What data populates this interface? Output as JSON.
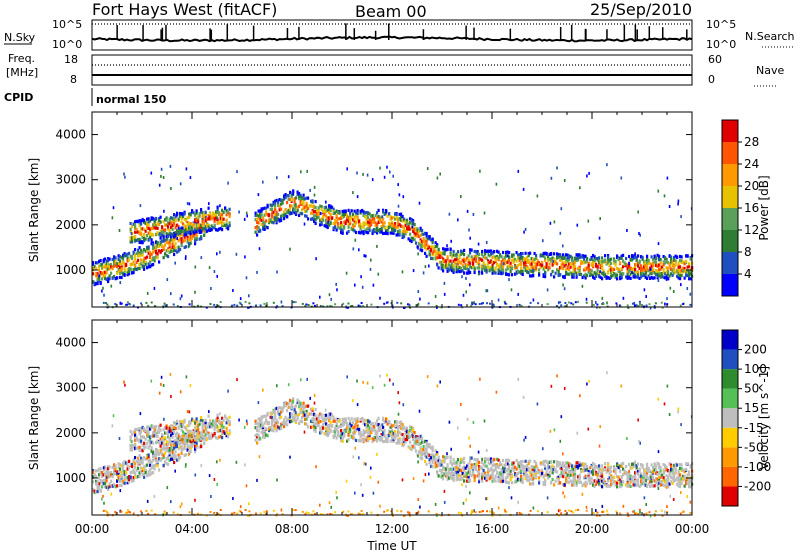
{
  "header": {
    "station": "Fort Hays West (fitACF)",
    "beam": "Beam 00",
    "date": "25/Sep/2010"
  },
  "left_labels": {
    "nsky": "N.Sky",
    "freq_line1": "Freq.",
    "freq_line2": "[MHz]",
    "cpid": "CPID"
  },
  "right_labels": {
    "nsearch": "N.Search",
    "nave": "Nave"
  },
  "noise_ticks": {
    "top": "10^5",
    "bottom": "10^0"
  },
  "freq_ticks": {
    "left_top": "18",
    "left_bottom": "8",
    "right_top": "60",
    "right_bottom": "0"
  },
  "cpid_text": "normal 150",
  "colors": {
    "power": [
      "#0000ff",
      "#2050c0",
      "#2e7d32",
      "#5aa05a",
      "#e6c200",
      "#ff9900",
      "#ff5500",
      "#e00000"
    ],
    "velocity": [
      "#e00000",
      "#ff6600",
      "#ff9900",
      "#ffcc00",
      "#bebebe",
      "#55c055",
      "#2e8b2e",
      "#2050c0",
      "#0000c8"
    ]
  },
  "chart_data": [
    {
      "type": "heatmap",
      "panel": "power",
      "ylabel": "Slant Range [km]",
      "ylim": [
        180,
        4500
      ],
      "yticks": [
        "1000",
        "2000",
        "3000",
        "4000"
      ],
      "xlim_hours": [
        0,
        24
      ],
      "colorbar_label": "Power [dB]",
      "colorbar_range": [
        0,
        30
      ],
      "colorbar_ticks": [
        "4",
        "8",
        "12",
        "16",
        "20",
        "24",
        "28"
      ],
      "features": [
        {
          "name": "range-band",
          "t_hours": [
            0.0,
            1.0,
            2.0,
            3.0,
            4.0,
            4.5
          ],
          "range_km": [
            950,
            1100,
            1300,
            1550,
            1850,
            2000
          ]
        },
        {
          "name": "range-band",
          "t_hours": [
            1.5,
            3.0,
            4.5,
            5.5
          ],
          "range_km": [
            1850,
            2000,
            2150,
            2200
          ]
        },
        {
          "name": "range-band",
          "t_hours": [
            6.5,
            8.0,
            9.0,
            10.0,
            12.0,
            12.8
          ],
          "range_km": [
            2050,
            2550,
            2300,
            2100,
            2100,
            1900
          ]
        },
        {
          "name": "range-band",
          "t_hours": [
            12.8,
            13.5,
            14.0,
            16.0,
            20.0,
            24.0
          ],
          "range_km": [
            1900,
            1500,
            1250,
            1200,
            1100,
            1100
          ]
        }
      ]
    },
    {
      "type": "heatmap",
      "panel": "velocity",
      "ylabel": "Slant Range [km]",
      "ylim": [
        180,
        4500
      ],
      "yticks": [
        "1000",
        "2000",
        "3000",
        "4000"
      ],
      "xlabel": "Time UT",
      "xticks": [
        "00:00",
        "04:00",
        "08:00",
        "12:00",
        "16:00",
        "20:00",
        "00:00"
      ],
      "xlim_hours": [
        0,
        24
      ],
      "colorbar_label": "Velocity [m s^-1]",
      "colorbar_range": [
        -250,
        250
      ],
      "colorbar_ticks": [
        "200",
        "100",
        "50",
        "15",
        "-15",
        "-50",
        "-100",
        "-200"
      ]
    }
  ]
}
